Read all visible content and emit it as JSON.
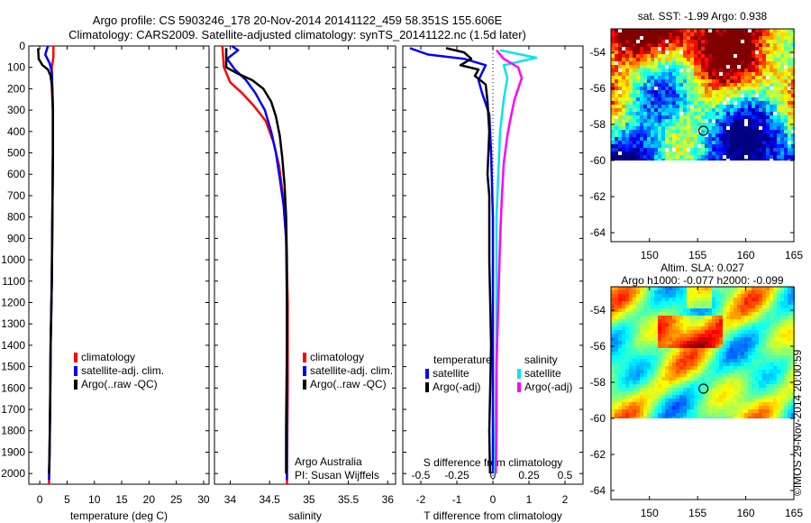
{
  "title_line1": "Argo profile: CS 5903246_178 20-Nov-2014 20141122_459 58.351S 155.606E",
  "title_line2": "Climatology: CARS2009. Satellite-adjusted climatology: synTS_20141122.nc (1.5d later)",
  "credit": "©IMOS 29-Nov-2014 20:00:59",
  "colors": {
    "climatology": "#ff0000",
    "satellite": "#0000ff",
    "argo": "#000000",
    "sat_s": "#00e5ee",
    "argo_s": "#ff00ff"
  },
  "chart_data": [
    {
      "type": "line",
      "xlabel": "temperature (deg C)",
      "xlim": [
        -2,
        31
      ],
      "xticks": [
        0,
        5,
        10,
        15,
        20,
        25,
        30
      ],
      "ylim": [
        2050,
        0
      ],
      "yticks": [
        0,
        100,
        200,
        300,
        400,
        500,
        600,
        700,
        800,
        900,
        1000,
        1100,
        1200,
        1300,
        1400,
        1500,
        1600,
        1700,
        1800,
        1900,
        2000
      ],
      "legend": [
        "climatology",
        "satellite-adj. clim.",
        "Argo(..raw -QC)"
      ],
      "series": [
        {
          "name": "climatology",
          "color": "#ff0000",
          "points": [
            [
              2.5,
              0
            ],
            [
              2.5,
              50
            ],
            [
              2.2,
              100
            ],
            [
              2.2,
              200
            ],
            [
              2.4,
              300
            ],
            [
              2.4,
              500
            ],
            [
              2.3,
              800
            ],
            [
              2.2,
              1100
            ],
            [
              2.0,
              1400
            ],
            [
              1.9,
              1700
            ],
            [
              1.8,
              1900
            ],
            [
              1.7,
              2050
            ]
          ]
        },
        {
          "name": "satellite-adj. clim.",
          "color": "#0000ff",
          "points": [
            [
              1.5,
              0
            ],
            [
              1.0,
              40
            ],
            [
              1.8,
              80
            ],
            [
              2.2,
              120
            ],
            [
              2.3,
              200
            ],
            [
              2.4,
              300
            ],
            [
              2.4,
              500
            ],
            [
              2.3,
              800
            ],
            [
              2.2,
              1100
            ],
            [
              2.0,
              1400
            ],
            [
              1.9,
              1700
            ],
            [
              1.8,
              1900
            ],
            [
              1.7,
              2030
            ]
          ]
        },
        {
          "name": "Argo(..raw -QC)",
          "color": "#000000",
          "points": [
            [
              -0.3,
              10
            ],
            [
              -0.2,
              60
            ],
            [
              0.5,
              90
            ],
            [
              1.5,
              110
            ],
            [
              2.0,
              140
            ],
            [
              2.3,
              200
            ],
            [
              2.4,
              300
            ],
            [
              2.4,
              500
            ],
            [
              2.3,
              800
            ],
            [
              2.2,
              1100
            ],
            [
              2.0,
              1400
            ],
            [
              1.9,
              1700
            ],
            [
              1.8,
              1900
            ],
            [
              1.7,
              2000
            ]
          ]
        }
      ]
    },
    {
      "type": "line",
      "xlabel": "salinity",
      "xlim": [
        33.8,
        36.1
      ],
      "xticks": [
        34,
        34.5,
        35,
        35.5,
        36
      ],
      "ylim": [
        2050,
        0
      ],
      "legend": [
        "climatology",
        "satellite-adj. clim.",
        "Argo(..raw -QC)"
      ],
      "annotation": [
        "Argo Australia",
        "PI: Susan Wijffels"
      ],
      "series": [
        {
          "name": "climatology",
          "color": "#ff0000",
          "points": [
            [
              33.9,
              0
            ],
            [
              33.92,
              100
            ],
            [
              34.0,
              170
            ],
            [
              34.15,
              220
            ],
            [
              34.3,
              280
            ],
            [
              34.45,
              350
            ],
            [
              34.55,
              450
            ],
            [
              34.62,
              560
            ],
            [
              34.67,
              700
            ],
            [
              34.71,
              900
            ],
            [
              34.73,
              1200
            ],
            [
              34.73,
              1600
            ],
            [
              34.72,
              2050
            ]
          ]
        },
        {
          "name": "satellite-adj. clim.",
          "color": "#0000ff",
          "points": [
            [
              34.02,
              0
            ],
            [
              34.1,
              20
            ],
            [
              33.96,
              60
            ],
            [
              34.06,
              110
            ],
            [
              34.2,
              160
            ],
            [
              34.32,
              220
            ],
            [
              34.44,
              300
            ],
            [
              34.52,
              400
            ],
            [
              34.58,
              500
            ],
            [
              34.63,
              620
            ],
            [
              34.68,
              750
            ],
            [
              34.71,
              900
            ],
            [
              34.72,
              1200
            ],
            [
              34.72,
              1600
            ],
            [
              34.72,
              2030
            ]
          ]
        },
        {
          "name": "Argo(..raw -QC)",
          "color": "#000000",
          "points": [
            [
              33.95,
              10
            ],
            [
              33.95,
              100
            ],
            [
              34.1,
              130
            ],
            [
              34.28,
              160
            ],
            [
              34.42,
              200
            ],
            [
              34.52,
              260
            ],
            [
              34.58,
              330
            ],
            [
              34.63,
              420
            ],
            [
              34.66,
              520
            ],
            [
              34.69,
              650
            ],
            [
              34.71,
              800
            ],
            [
              34.72,
              1000
            ],
            [
              34.72,
              1400
            ],
            [
              34.71,
              1800
            ],
            [
              34.71,
              2000
            ]
          ]
        }
      ]
    },
    {
      "type": "line",
      "xlabel": "T difference from climatology",
      "xlabel_top": "S difference from climatology",
      "xlim": [
        -2.5,
        2.5
      ],
      "xticks": [
        -2,
        -1,
        0,
        1,
        2
      ],
      "xticks_top": [
        "-0.5",
        "-0.25",
        "0",
        "0.25",
        "0.5"
      ],
      "ylim": [
        2050,
        0
      ],
      "legend": {
        "temperature": [
          "satellite",
          "Argo(-adj)"
        ],
        "salinity": [
          "satellite",
          "Argo(-adj)"
        ]
      },
      "series": [
        {
          "name": "satellite",
          "color": "#0000ff",
          "points": [
            [
              -2.3,
              10
            ],
            [
              -1.8,
              40
            ],
            [
              -0.8,
              60
            ],
            [
              -0.2,
              90
            ],
            [
              -0.4,
              160
            ],
            [
              -0.3,
              220
            ],
            [
              -0.1,
              320
            ],
            [
              -0.05,
              500
            ],
            [
              0,
              800
            ],
            [
              0,
              1200
            ],
            [
              0,
              1600
            ],
            [
              0,
              2000
            ]
          ]
        },
        {
          "name": "Argo(-adj)",
          "color": "#000000",
          "points": [
            [
              -1.3,
              10
            ],
            [
              -0.8,
              30
            ],
            [
              -0.6,
              60
            ],
            [
              -0.9,
              90
            ],
            [
              -0.4,
              110
            ],
            [
              -0.5,
              140
            ],
            [
              -0.2,
              180
            ],
            [
              -0.15,
              260
            ],
            [
              -0.1,
              400
            ],
            [
              -0.15,
              600
            ],
            [
              -0.1,
              700
            ],
            [
              -0.1,
              1000
            ],
            [
              -0.05,
              1400
            ],
            [
              -0.1,
              1800
            ],
            [
              -0.08,
              2000
            ]
          ]
        },
        {
          "name": "satellite",
          "color": "#00e5ee",
          "points": [
            [
              0.2,
              20
            ],
            [
              1.2,
              55
            ],
            [
              0.3,
              90
            ],
            [
              0.4,
              150
            ],
            [
              0.3,
              250
            ],
            [
              0.2,
              400
            ],
            [
              0.15,
              600
            ],
            [
              0.1,
              800
            ],
            [
              0.1,
              1100
            ],
            [
              0.1,
              1400
            ],
            [
              0.08,
              1700
            ],
            [
              0.05,
              2000
            ]
          ]
        },
        {
          "name": "Argo(-adj)",
          "color": "#ff00ff",
          "points": [
            [
              0.1,
              20
            ],
            [
              0.3,
              60
            ],
            [
              0.7,
              100
            ],
            [
              0.8,
              150
            ],
            [
              0.7,
              200
            ],
            [
              0.6,
              250
            ],
            [
              0.5,
              330
            ],
            [
              0.4,
              420
            ],
            [
              0.3,
              550
            ],
            [
              0.25,
              700
            ],
            [
              0.2,
              900
            ],
            [
              0.15,
              1200
            ],
            [
              0.1,
              1500
            ],
            [
              0.1,
              1800
            ],
            [
              0.08,
              2000
            ]
          ]
        }
      ]
    },
    {
      "type": "heatmap",
      "title": "sat. SST: -1.99 Argo: 0.938",
      "xlim": [
        146,
        165
      ],
      "ylim": [
        -64.5,
        -52.7
      ],
      "xticks": [
        150,
        155,
        160,
        165
      ],
      "yticks": [
        -54,
        -56,
        -58,
        -60,
        -62,
        -64
      ],
      "data_ylim": [
        -60,
        -52.7
      ],
      "marker": [
        155.606,
        -58.351
      ]
    },
    {
      "type": "heatmap",
      "title": "Altim. SLA: 0.027",
      "subtitle": "Argo h1000: -0.077 h2000: -0.099",
      "xlim": [
        146,
        165
      ],
      "ylim": [
        -64.5,
        -52.7
      ],
      "xticks": [
        150,
        155,
        160,
        165
      ],
      "yticks": [
        -54,
        -56,
        -58,
        -60,
        -62,
        -64
      ],
      "data_ylim": [
        -60,
        -52.7
      ],
      "marker": [
        155.606,
        -58.351
      ]
    }
  ]
}
